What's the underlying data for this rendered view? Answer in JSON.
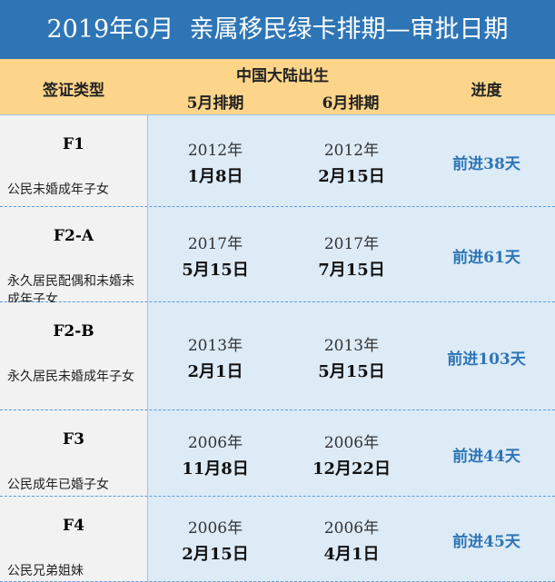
{
  "title": "2019年6月  亲属移民绿卡排期—审批日期",
  "header": {
    "category": "签证类型",
    "group": "中国大陆出生",
    "may": "5月排期",
    "june": "6月排期",
    "progress": "进度"
  },
  "rows": [
    {
      "code": "F1",
      "desc": "公民未婚成年子女",
      "may_year": "2012年",
      "may_date": "1月8日",
      "june_year": "2012年",
      "june_date": "2月15日",
      "progress": "前进38天"
    },
    {
      "code": "F2-A",
      "desc": "永久居民配偶和未婚未成年子女",
      "may_year": "2017年",
      "may_date": "5月15日",
      "june_year": "2017年",
      "june_date": "7月15日",
      "progress": "前进61天"
    },
    {
      "code": "F2-B",
      "desc": "永久居民未婚成年子女",
      "may_year": "2013年",
      "may_date": "2月1日",
      "june_year": "2013年",
      "june_date": "5月15日",
      "progress": "前进103天"
    },
    {
      "code": "F3",
      "desc": "公民成年已婚子女",
      "may_year": "2006年",
      "may_date": "11月8日",
      "june_year": "2006年",
      "june_date": "12月22日",
      "progress": "前进44天"
    },
    {
      "code": "F4",
      "desc": "公民兄弟姐妹",
      "may_year": "2006年",
      "may_date": "2月15日",
      "june_year": "2006年",
      "june_date": "4月1日",
      "progress": "前进45天"
    }
  ]
}
